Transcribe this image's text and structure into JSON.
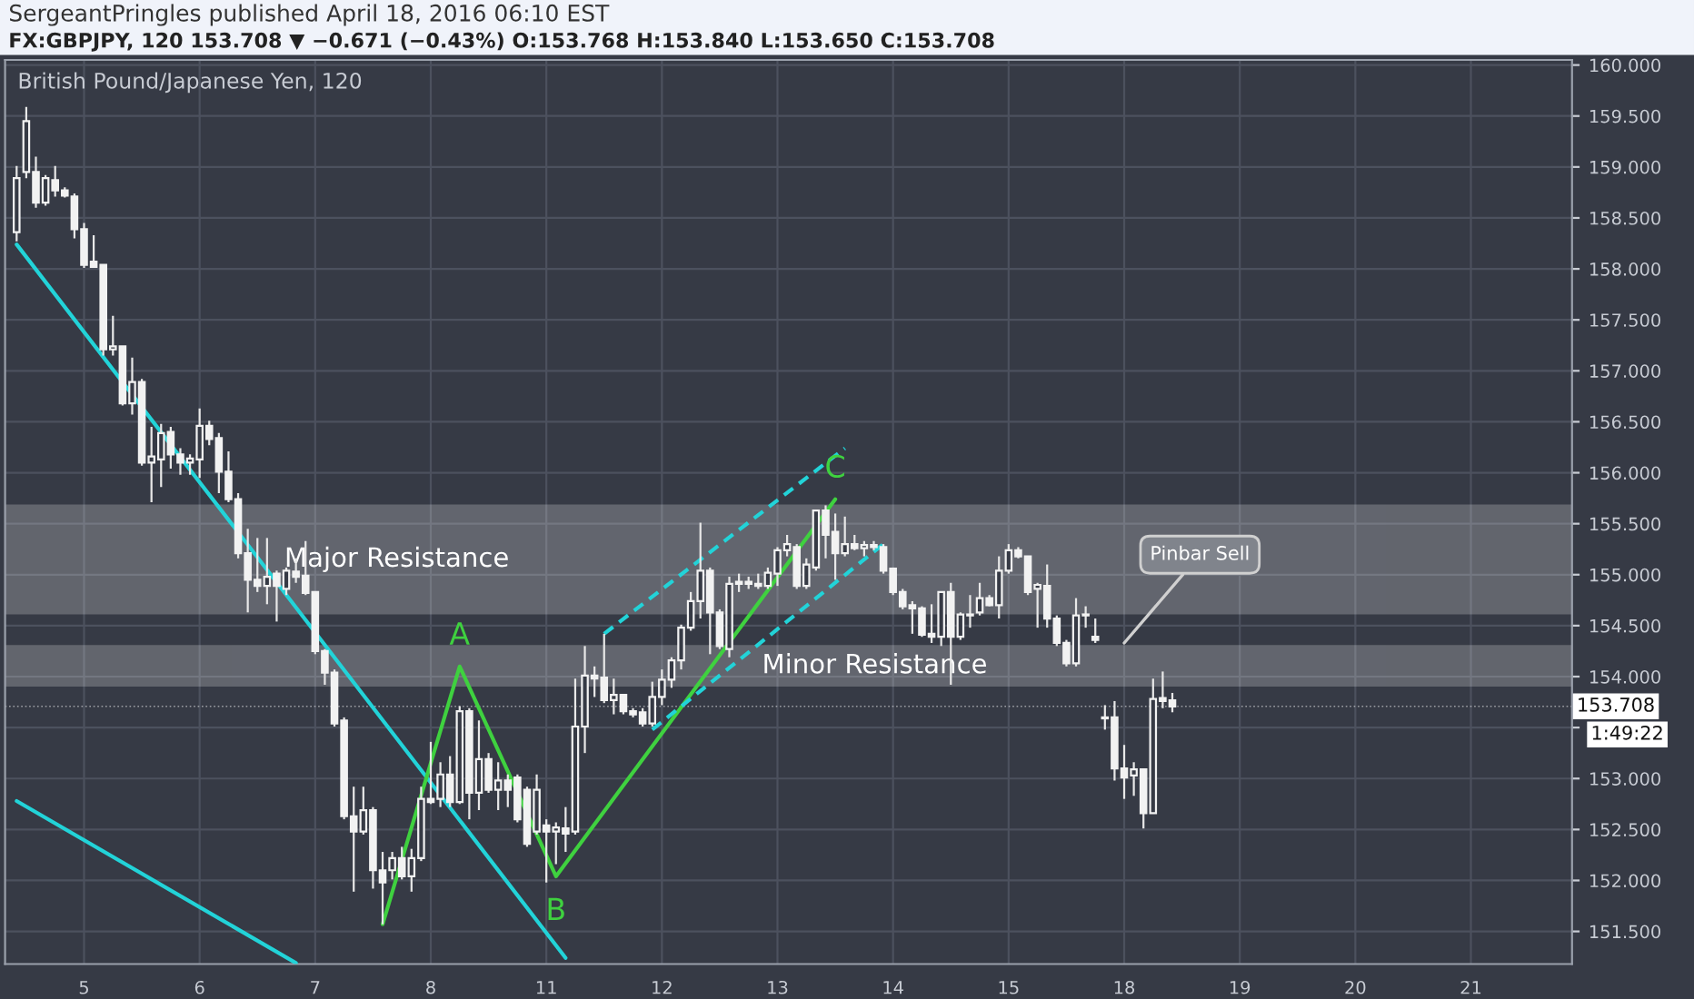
{
  "chart_data": {
    "type": "candlestick",
    "title": "SergeantPringles published April 18, 2016 06:10 EST",
    "subtitle": "FX:GBPJPY, 120 153.708 ▼ −0.671 (−0.43%) O:153.768 H:153.840 L:153.650 C:153.708",
    "categories": [
      null,
      null,
      null,
      null,
      null,
      null,
      null,
      "5",
      null,
      null,
      null,
      null,
      null,
      null,
      null,
      null,
      null,
      null,
      null,
      "6",
      null,
      null,
      null,
      null,
      null,
      null,
      null,
      null,
      null,
      null,
      null,
      "7",
      null,
      null,
      null,
      null,
      null,
      null,
      null,
      null,
      null,
      null,
      null,
      "8",
      null,
      null,
      null,
      null,
      null,
      null,
      null,
      null,
      null,
      null,
      null,
      "11",
      null,
      null,
      null,
      null,
      null,
      null,
      null,
      null,
      null,
      null,
      null,
      "12",
      null,
      null,
      null,
      null,
      null,
      null,
      null,
      null,
      null,
      null,
      null,
      "13",
      null,
      null,
      null,
      null,
      null,
      null,
      null,
      null,
      null,
      null,
      null,
      "14",
      null,
      null,
      null,
      null,
      null,
      null,
      null,
      null,
      null,
      null,
      null,
      "15",
      null,
      null,
      null,
      null,
      null,
      null,
      null,
      null,
      null,
      null,
      null,
      "18",
      null,
      null,
      null,
      null,
      null,
      null,
      null,
      null,
      null,
      null,
      null,
      "19",
      null,
      null,
      null,
      null,
      null,
      null,
      null,
      null,
      null,
      null,
      null,
      "20",
      null,
      null,
      null,
      null,
      null,
      null,
      null,
      null,
      null,
      null,
      null,
      "21",
      null,
      null,
      null,
      null,
      null,
      null,
      null,
      null,
      null,
      null
    ],
    "ohlc": [
      [
        158.36,
        159.01,
        158.27,
        158.89
      ],
      [
        158.95,
        159.59,
        158.89,
        159.45
      ],
      [
        158.95,
        159.1,
        158.6,
        158.65
      ],
      [
        158.65,
        158.92,
        158.62,
        158.89
      ],
      [
        158.87,
        159.01,
        158.71,
        158.77
      ],
      [
        158.77,
        158.8,
        158.7,
        158.72
      ],
      [
        158.71,
        158.74,
        158.3,
        158.39
      ],
      [
        158.39,
        158.45,
        158.01,
        158.04
      ],
      [
        158.07,
        158.33,
        158.01,
        158.02
      ],
      [
        158.04,
        158.04,
        157.15,
        157.21
      ],
      [
        157.21,
        157.54,
        157.15,
        157.24
      ],
      [
        157.24,
        157.24,
        156.66,
        156.68
      ],
      [
        156.68,
        157.13,
        156.57,
        156.89
      ],
      [
        156.89,
        156.92,
        156.07,
        156.1
      ],
      [
        156.1,
        156.45,
        155.71,
        156.16
      ],
      [
        156.13,
        156.48,
        155.86,
        156.39
      ],
      [
        156.4,
        156.45,
        156.04,
        156.18
      ],
      [
        156.18,
        156.24,
        155.98,
        156.1
      ],
      [
        156.1,
        156.18,
        155.98,
        156.14
      ],
      [
        156.13,
        156.63,
        155.95,
        156.46
      ],
      [
        156.46,
        156.51,
        156.27,
        156.33
      ],
      [
        156.34,
        156.39,
        155.8,
        156.01
      ],
      [
        156.01,
        156.21,
        155.71,
        155.74
      ],
      [
        155.74,
        155.8,
        155.16,
        155.21
      ],
      [
        155.21,
        155.45,
        154.63,
        154.95
      ],
      [
        154.95,
        155.36,
        154.83,
        154.89
      ],
      [
        154.89,
        155.36,
        154.71,
        154.98
      ],
      [
        155.01,
        155.04,
        154.54,
        154.89
      ],
      [
        154.86,
        155.07,
        154.8,
        155.04
      ],
      [
        155.03,
        155.16,
        154.92,
        154.98
      ],
      [
        154.99,
        155.33,
        154.8,
        154.82
      ],
      [
        154.83,
        154.83,
        154.22,
        154.25
      ],
      [
        154.25,
        154.27,
        153.92,
        154.04
      ],
      [
        154.04,
        154.07,
        153.51,
        153.54
      ],
      [
        153.57,
        153.6,
        152.6,
        152.63
      ],
      [
        152.63,
        152.92,
        151.89,
        152.48
      ],
      [
        152.48,
        152.92,
        152.45,
        152.69
      ],
      [
        152.69,
        152.72,
        151.92,
        152.1
      ],
      [
        152.1,
        152.28,
        151.57,
        151.98
      ],
      [
        152.1,
        152.28,
        152.01,
        152.22
      ],
      [
        152.22,
        152.33,
        152.01,
        152.04
      ],
      [
        152.04,
        152.31,
        151.89,
        152.22
      ],
      [
        152.22,
        152.92,
        152.19,
        152.8
      ],
      [
        152.8,
        153.36,
        152.75,
        152.77
      ],
      [
        152.8,
        153.16,
        152.72,
        153.04
      ],
      [
        153.04,
        153.22,
        152.72,
        152.77
      ],
      [
        152.77,
        153.71,
        152.75,
        153.66
      ],
      [
        153.66,
        153.69,
        152.6,
        152.86
      ],
      [
        152.86,
        153.57,
        152.69,
        153.19
      ],
      [
        153.19,
        153.25,
        152.86,
        152.89
      ],
      [
        152.89,
        153.16,
        152.69,
        152.98
      ],
      [
        152.98,
        153.04,
        152.72,
        152.89
      ],
      [
        153.01,
        153.04,
        152.57,
        152.6
      ],
      [
        152.89,
        152.92,
        152.33,
        152.36
      ],
      [
        152.48,
        153.04,
        152.45,
        152.89
      ],
      [
        152.54,
        152.6,
        151.98,
        152.48
      ],
      [
        152.48,
        152.57,
        152.16,
        152.52
      ],
      [
        152.51,
        152.72,
        152.28,
        152.46
      ],
      [
        152.48,
        153.98,
        152.45,
        153.51
      ],
      [
        153.51,
        154.3,
        153.25,
        154.01
      ],
      [
        154.01,
        154.1,
        153.8,
        153.98
      ],
      [
        153.99,
        154.42,
        153.74,
        153.77
      ],
      [
        153.77,
        153.98,
        153.63,
        153.82
      ],
      [
        153.82,
        153.83,
        153.63,
        153.66
      ],
      [
        153.66,
        153.69,
        153.6,
        153.63
      ],
      [
        153.65,
        153.69,
        153.51,
        153.54
      ],
      [
        153.54,
        153.95,
        153.51,
        153.8
      ],
      [
        153.8,
        154.07,
        153.72,
        153.97
      ],
      [
        153.97,
        154.19,
        153.89,
        154.16
      ],
      [
        154.16,
        154.51,
        154.07,
        154.48
      ],
      [
        154.48,
        154.83,
        154.45,
        154.74
      ],
      [
        154.74,
        155.51,
        154.57,
        155.04
      ],
      [
        155.04,
        155.07,
        154.22,
        154.63
      ],
      [
        154.63,
        154.66,
        154.27,
        154.3
      ],
      [
        154.27,
        154.98,
        154.19,
        154.91
      ],
      [
        154.91,
        155.01,
        154.83,
        154.93
      ],
      [
        154.93,
        154.98,
        154.86,
        154.91
      ],
      [
        154.91,
        155.01,
        154.86,
        154.89
      ],
      [
        154.89,
        155.07,
        154.86,
        155.02
      ],
      [
        155.01,
        155.27,
        154.89,
        155.24
      ],
      [
        155.24,
        155.39,
        155.18,
        155.3
      ],
      [
        155.27,
        155.3,
        154.86,
        154.89
      ],
      [
        154.89,
        155.16,
        154.86,
        155.1
      ],
      [
        155.07,
        155.63,
        155.04,
        155.63
      ],
      [
        155.63,
        155.68,
        155.16,
        155.39
      ],
      [
        155.42,
        155.6,
        154.95,
        155.21
      ],
      [
        155.21,
        155.57,
        155.18,
        155.3
      ],
      [
        155.3,
        155.39,
        155.24,
        155.26
      ],
      [
        155.26,
        155.33,
        155.18,
        155.29
      ],
      [
        155.29,
        155.33,
        155.24,
        155.27
      ],
      [
        155.27,
        155.3,
        155.01,
        155.04
      ],
      [
        155.06,
        155.07,
        154.8,
        154.83
      ],
      [
        154.83,
        154.86,
        154.66,
        154.69
      ],
      [
        154.7,
        154.74,
        154.42,
        154.67
      ],
      [
        154.67,
        154.69,
        154.39,
        154.41
      ],
      [
        154.42,
        154.71,
        154.33,
        154.39
      ],
      [
        154.39,
        154.83,
        154.3,
        154.83
      ],
      [
        154.83,
        154.92,
        153.92,
        154.39
      ],
      [
        154.39,
        154.63,
        154.36,
        154.61
      ],
      [
        154.61,
        154.8,
        154.48,
        154.6
      ],
      [
        154.63,
        154.92,
        154.6,
        154.77
      ],
      [
        154.77,
        154.8,
        154.69,
        154.7
      ],
      [
        154.7,
        155.18,
        154.57,
        155.04
      ],
      [
        155.04,
        155.3,
        155.01,
        155.24
      ],
      [
        155.24,
        155.27,
        155.16,
        155.18
      ],
      [
        155.18,
        155.18,
        154.8,
        154.83
      ],
      [
        154.86,
        154.92,
        154.48,
        154.9
      ],
      [
        154.89,
        155.1,
        154.48,
        154.57
      ],
      [
        154.57,
        154.6,
        154.3,
        154.33
      ],
      [
        154.33,
        154.36,
        154.1,
        154.13
      ],
      [
        154.13,
        154.77,
        154.1,
        154.6
      ],
      [
        154.61,
        154.69,
        154.48,
        154.6
      ],
      [
        154.39,
        154.57,
        154.33,
        154.36
      ],
      [
        153.6,
        153.72,
        153.48,
        153.59
      ],
      [
        153.6,
        153.76,
        152.98,
        153.1
      ],
      [
        153.1,
        153.33,
        152.8,
        153.01
      ],
      [
        153.03,
        153.16,
        152.83,
        153.09
      ],
      [
        153.09,
        153.09,
        152.51,
        152.66
      ],
      [
        152.66,
        153.98,
        152.66,
        153.78
      ],
      [
        153.79,
        154.05,
        153.69,
        153.76
      ],
      [
        153.768,
        153.84,
        153.65,
        153.708
      ],
      null,
      null,
      null,
      null,
      null,
      null,
      null,
      null,
      null,
      null,
      null,
      null,
      null,
      null,
      null,
      null,
      null,
      null,
      null,
      null,
      null,
      null,
      null,
      null,
      null,
      null,
      null,
      null,
      null,
      null,
      null,
      null,
      null,
      null,
      null,
      null,
      null,
      null,
      null,
      null,
      null
    ],
    "series": [
      {
        "type": "line",
        "color": "#22d3d8",
        "line_style": "solid",
        "values": [
          158.24,
          null,
          null,
          null,
          null,
          null,
          null,
          null,
          null,
          null,
          null,
          null,
          null,
          null,
          null,
          null,
          null,
          null,
          null,
          null,
          null,
          null,
          null,
          null,
          null,
          null,
          null,
          null,
          null,
          null,
          null,
          null,
          null,
          null,
          null,
          null,
          null,
          null,
          null,
          null,
          null,
          null,
          null,
          null,
          null,
          null,
          null,
          null,
          null,
          null,
          null,
          null,
          null,
          null,
          null,
          null,
          null,
          151.24,
          null,
          null,
          null,
          null,
          null,
          null,
          null,
          null,
          null,
          null,
          null,
          null,
          null,
          null,
          null,
          null,
          null,
          null,
          null,
          null,
          null,
          null,
          null,
          null,
          null,
          null,
          null,
          null,
          null,
          null,
          null,
          null,
          null,
          null,
          null,
          null,
          null,
          null,
          null,
          null,
          null,
          null,
          null,
          null,
          null,
          null,
          null,
          null,
          null,
          null,
          null,
          null,
          null,
          null,
          null,
          null,
          null,
          null,
          null,
          null,
          null,
          null,
          null,
          null,
          null,
          null,
          null,
          null,
          null,
          null,
          null,
          null,
          null,
          null,
          null,
          null,
          null,
          null,
          null,
          null,
          null,
          null,
          null,
          null,
          null,
          null,
          null,
          null,
          null,
          null,
          null,
          null,
          null,
          null,
          null,
          null,
          null,
          null,
          null,
          null,
          null,
          null,
          null,
          null
        ]
      },
      {
        "type": "line",
        "color": "#22d3d8",
        "line_style": "solid",
        "values": [
          152.78,
          null,
          null,
          null,
          null,
          null,
          null,
          null,
          null,
          null,
          null,
          null,
          null,
          null,
          null,
          null,
          null,
          null,
          null,
          null,
          null,
          null,
          null,
          null,
          null,
          null,
          null,
          null,
          null,
          151.19,
          null,
          null,
          null,
          null,
          null,
          null,
          null,
          null,
          null,
          null,
          null,
          null,
          null,
          null,
          null,
          null,
          null,
          null,
          null,
          null,
          null,
          null,
          null,
          null,
          null,
          null,
          null,
          null,
          null,
          null,
          null,
          null,
          null,
          null,
          null,
          null,
          null,
          null,
          null,
          null,
          null,
          null,
          null,
          null,
          null,
          null,
          null,
          null,
          null,
          null,
          null,
          null,
          null,
          null,
          null,
          null,
          null,
          null,
          null,
          null,
          null,
          null,
          null,
          null,
          null,
          null,
          null,
          null,
          null,
          null,
          null,
          null,
          null,
          null,
          null,
          null,
          null,
          null,
          null,
          null,
          null,
          null,
          null,
          null,
          null,
          null,
          null,
          null,
          null,
          null,
          null,
          null,
          null,
          null,
          null,
          null,
          null,
          null,
          null,
          null,
          null,
          null,
          null,
          null,
          null,
          null,
          null,
          null,
          null,
          null,
          null,
          null,
          null,
          null,
          null,
          null,
          null,
          null,
          null,
          null,
          null,
          null,
          null,
          null,
          null,
          null,
          null,
          null,
          null,
          null,
          null,
          null
        ]
      },
      {
        "type": "line",
        "color": "#3fd13f",
        "line_style": "solid",
        "values": [
          null,
          null,
          null,
          null,
          null,
          null,
          null,
          null,
          null,
          null,
          null,
          null,
          null,
          null,
          null,
          null,
          null,
          null,
          null,
          null,
          null,
          null,
          null,
          null,
          null,
          null,
          null,
          null,
          null,
          null,
          null,
          null,
          null,
          null,
          null,
          null,
          null,
          null,
          151.57,
          null,
          null,
          null,
          null,
          null,
          null,
          null,
          154.1,
          null,
          null,
          null,
          null,
          null,
          null,
          null,
          null,
          null,
          152.04,
          null,
          null,
          null,
          null,
          null,
          null,
          null,
          null,
          null,
          null,
          null,
          null,
          null,
          null,
          null,
          null,
          null,
          null,
          null,
          null,
          null,
          null,
          null,
          null,
          null,
          null,
          null,
          null,
          155.74,
          null,
          null,
          null,
          null,
          null,
          null,
          null,
          null,
          null,
          null,
          null,
          null,
          null,
          null,
          null,
          null,
          null,
          null,
          null,
          null,
          null,
          null,
          null,
          null,
          null,
          null,
          null,
          null,
          null,
          null,
          null,
          null,
          null,
          null,
          null,
          null,
          null,
          null,
          null,
          null,
          null,
          null,
          null,
          null,
          null,
          null,
          null,
          null,
          null,
          null,
          null,
          null,
          null,
          null,
          null,
          null,
          null,
          null,
          null,
          null,
          null,
          null,
          null,
          null,
          null,
          null,
          null,
          null,
          null,
          null,
          null,
          null,
          null,
          null,
          null,
          null
        ]
      },
      {
        "type": "line",
        "color": "#22d3d8",
        "line_style": "dashed",
        "values": [
          null,
          null,
          null,
          null,
          null,
          null,
          null,
          null,
          null,
          null,
          null,
          null,
          null,
          null,
          null,
          null,
          null,
          null,
          null,
          null,
          null,
          null,
          null,
          null,
          null,
          null,
          null,
          null,
          null,
          null,
          null,
          null,
          null,
          null,
          null,
          null,
          null,
          null,
          null,
          null,
          null,
          null,
          null,
          null,
          null,
          null,
          null,
          null,
          null,
          null,
          null,
          null,
          null,
          null,
          null,
          null,
          null,
          null,
          null,
          null,
          null,
          154.42,
          null,
          null,
          null,
          null,
          null,
          null,
          null,
          null,
          null,
          null,
          null,
          null,
          null,
          null,
          null,
          null,
          null,
          null,
          null,
          null,
          null,
          null,
          null,
          null,
          156.24,
          null,
          null,
          null,
          null,
          null,
          null,
          null,
          null,
          null,
          null,
          null,
          null,
          null,
          null,
          null,
          null,
          null,
          null,
          null,
          null,
          null,
          null,
          null,
          null,
          null,
          null,
          null,
          null,
          null,
          null,
          null,
          null,
          null,
          null,
          null,
          null,
          null,
          null,
          null,
          null,
          null,
          null,
          null,
          null,
          null,
          null,
          null,
          null,
          null,
          null,
          null,
          null,
          null,
          null,
          null,
          null,
          null,
          null,
          null,
          null,
          null,
          null,
          null,
          null,
          null,
          null,
          null,
          null,
          null,
          null,
          null,
          null,
          null,
          null,
          null
        ]
      },
      {
        "type": "line",
        "color": "#22d3d8",
        "line_style": "dashed",
        "values": [
          null,
          null,
          null,
          null,
          null,
          null,
          null,
          null,
          null,
          null,
          null,
          null,
          null,
          null,
          null,
          null,
          null,
          null,
          null,
          null,
          null,
          null,
          null,
          null,
          null,
          null,
          null,
          null,
          null,
          null,
          null,
          null,
          null,
          null,
          null,
          null,
          null,
          null,
          null,
          null,
          null,
          null,
          null,
          null,
          null,
          null,
          null,
          null,
          null,
          null,
          null,
          null,
          null,
          null,
          null,
          null,
          null,
          null,
          null,
          null,
          null,
          null,
          null,
          null,
          null,
          null,
          153.48,
          null,
          null,
          null,
          null,
          null,
          null,
          null,
          null,
          null,
          null,
          null,
          null,
          null,
          null,
          null,
          null,
          null,
          null,
          null,
          null,
          null,
          null,
          null,
          155.3,
          null,
          null,
          null,
          null,
          null,
          null,
          null,
          null,
          null,
          null,
          null,
          null,
          null,
          null,
          null,
          null,
          null,
          null,
          null,
          null,
          null,
          null,
          null,
          null,
          null,
          null,
          null,
          null,
          null,
          null,
          null,
          null,
          null,
          null,
          null,
          null,
          null,
          null,
          null,
          null,
          null,
          null,
          null,
          null,
          null,
          null,
          null,
          null,
          null,
          null,
          null,
          null,
          null,
          null,
          null,
          null,
          null,
          null,
          null,
          null,
          null,
          null,
          null,
          null,
          null,
          null,
          null,
          null,
          null,
          null,
          null
        ]
      }
    ],
    "bands": [
      {
        "axis": "y",
        "from": 154.63,
        "to": 155.67,
        "label": "Major Resistance",
        "color": "#ffffff"
      },
      {
        "axis": "y",
        "from": 153.92,
        "to": 154.29,
        "label": "Minor Resistance",
        "color": "#ffffff"
      }
    ],
    "ref_lines": [
      {
        "axis": "y",
        "value": 153.708,
        "label": "153.708",
        "color": "#ffffff",
        "line_style": "dotted"
      }
    ],
    "annotations": [
      "British Pound/Japanese Yen, 120",
      "1:49:22",
      "A",
      "B",
      "C",
      {
        "text": "Pinbar Sell",
        "x": "18",
        "y": 154.33
      }
    ],
    "ylim": [
      151.18,
      160.05
    ],
    "yticks": [
      {
        "value": 151.5,
        "label": "151.500"
      },
      {
        "value": 152.0,
        "label": "152.000"
      },
      {
        "value": 152.5,
        "label": "152.500"
      },
      {
        "value": 153.0,
        "label": "153.000"
      },
      {
        "value": 153.5,
        "label": null
      },
      {
        "value": 154.0,
        "label": "154.000"
      },
      {
        "value": 154.5,
        "label": "154.500"
      },
      {
        "value": 155.0,
        "label": "155.000"
      },
      {
        "value": 155.5,
        "label": "155.500"
      },
      {
        "value": 156.0,
        "label": "156.000"
      },
      {
        "value": 156.5,
        "label": "156.500"
      },
      {
        "value": 157.0,
        "label": "157.000"
      },
      {
        "value": 157.5,
        "label": "157.500"
      },
      {
        "value": 158.0,
        "label": "158.000"
      },
      {
        "value": 158.5,
        "label": "158.500"
      },
      {
        "value": 159.0,
        "label": "159.000"
      },
      {
        "value": 159.5,
        "label": "159.500"
      },
      {
        "value": 160.0,
        "label": "160.000"
      }
    ],
    "grid": true,
    "marker": "none"
  }
}
